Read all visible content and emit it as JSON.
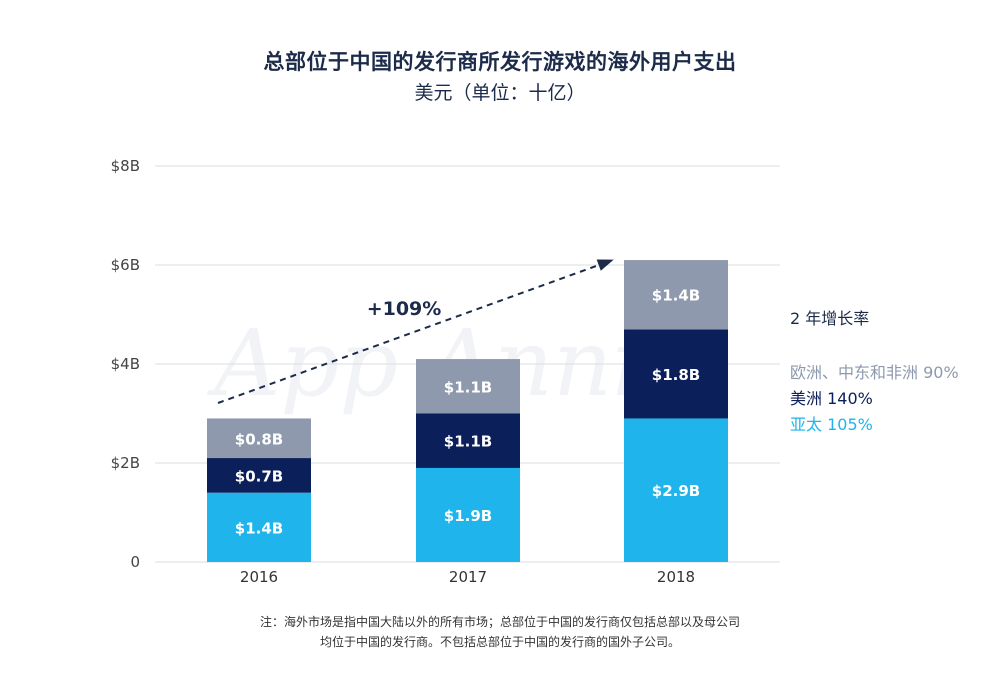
{
  "title": "总部位于中国的发行商所发行游戏的海外用户支出",
  "subtitle": "美元（单位：十亿）",
  "watermark": "App Annie",
  "growth_label": "+109%",
  "legend": {
    "heading": "2 年增长率",
    "items": [
      {
        "name": "欧洲、中东和非洲",
        "pct": "90%",
        "color": "#8e99ad"
      },
      {
        "name": "美洲",
        "pct": "140%",
        "color": "#0b1f5a"
      },
      {
        "name": "亚太",
        "pct": "105%",
        "color": "#1fb4ec"
      }
    ]
  },
  "note_line1": "注：海外市场是指中国大陆以外的所有市场；总部位于中国的发行商仅包括总部以及母公司",
  "note_line2": "均位于中国的发行商。不包括总部位于中国的发行商的国外子公司。",
  "chart_data": {
    "type": "bar",
    "stacked": true,
    "categories": [
      "2016",
      "2017",
      "2018"
    ],
    "series": [
      {
        "name": "亚太",
        "color": "#1fb4ec",
        "values": [
          1.4,
          1.9,
          2.9
        ],
        "labels": [
          "$1.4B",
          "$1.9B",
          "$2.9B"
        ]
      },
      {
        "name": "美洲",
        "color": "#0b1f5a",
        "values": [
          0.7,
          1.1,
          1.8
        ],
        "labels": [
          "$0.7B",
          "$1.1B",
          "$1.8B"
        ]
      },
      {
        "name": "欧洲、中东和非洲",
        "color": "#8e99ad",
        "values": [
          0.8,
          1.1,
          1.4
        ],
        "labels": [
          "$0.8B",
          "$1.1B",
          "$1.4B"
        ]
      }
    ],
    "yticks": [
      0,
      2,
      4,
      6,
      8
    ],
    "ytick_labels": [
      "0",
      "$2B",
      "$4B",
      "$6B",
      "$8B"
    ],
    "ylim": [
      0,
      8
    ],
    "grid": true,
    "annotation": {
      "text": "+109%",
      "from": "2016",
      "to": "2018"
    }
  }
}
